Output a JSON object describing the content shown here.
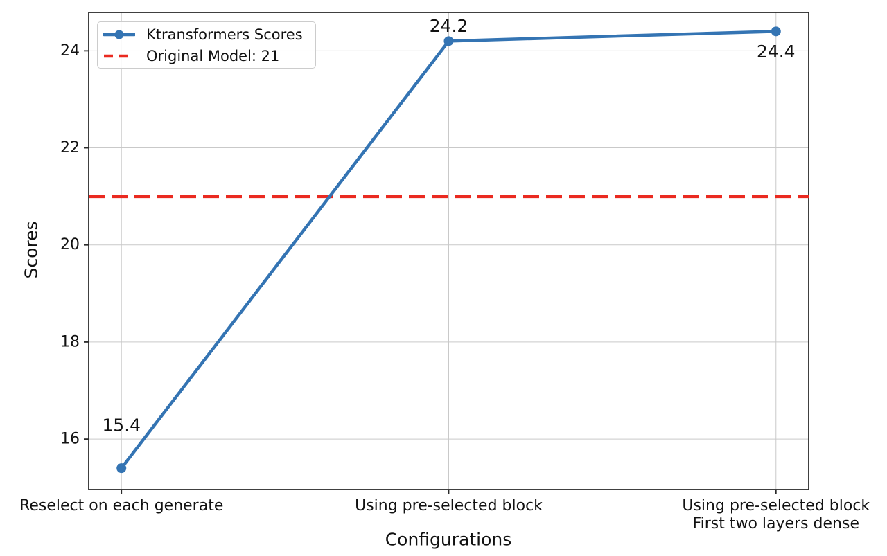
{
  "chart_data": {
    "type": "line",
    "title": "",
    "xlabel": "Configurations",
    "ylabel": "Scores",
    "categories": [
      "Reselect on each generate",
      "Using pre-selected block",
      "Using pre-selected block\nFirst two layers dense"
    ],
    "series": [
      {
        "name": "Ktransformers Scores",
        "values": [
          15.4,
          24.2,
          24.4
        ],
        "color": "#3474b3",
        "marker": "circle",
        "line_style": "solid"
      }
    ],
    "reference_line": {
      "label": "Original Model: 21",
      "value": 21,
      "color": "#ea2a20",
      "line_style": "dashed"
    },
    "point_labels": [
      "15.4",
      "24.2",
      "24.4"
    ],
    "yticks": [
      16,
      18,
      20,
      22,
      24
    ],
    "ylim": [
      14.96,
      24.79
    ],
    "grid": true,
    "legend_position": "upper left",
    "colors": {
      "grid": "#c9c9c9",
      "spine": "#2b2b2b",
      "text": "#111111"
    }
  }
}
